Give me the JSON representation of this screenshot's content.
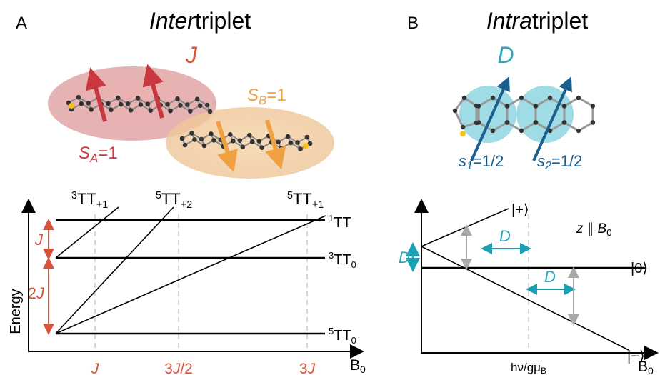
{
  "panel_a": {
    "letter": "A",
    "title": {
      "italic": "Inter",
      "rest": "triplet"
    },
    "coupling": "J",
    "spin_b": {
      "symbol": "S",
      "sub": "B",
      "value": "=1"
    },
    "spin_a": {
      "symbol": "S",
      "sub": "A",
      "value": "=1"
    },
    "diagram": {
      "y_label": "Energy",
      "x_label": {
        "main": "B",
        "sub": "0"
      },
      "top_labels": [
        {
          "sup": "3",
          "main": "TT",
          "sub": "+1"
        },
        {
          "sup": "5",
          "main": "TT",
          "sub": "+2"
        },
        {
          "sup": "5",
          "main": "TT",
          "sub": "+1"
        }
      ],
      "right_labels": [
        {
          "sup": "1",
          "main": "TT"
        },
        {
          "sup": "3",
          "main": "TT",
          "sub": "0"
        },
        {
          "sup": "5",
          "main": "TT",
          "sub": "0"
        }
      ],
      "gaps": [
        {
          "var": "J"
        },
        {
          "pre": "2",
          "var": "J"
        }
      ],
      "x_ticks": [
        {
          "var": "J"
        },
        {
          "pre": "3",
          "var": "J",
          "post": "/2"
        },
        {
          "pre": "3",
          "var": "J"
        }
      ]
    }
  },
  "panel_b": {
    "letter": "B",
    "title": {
      "italic": "Intra",
      "rest": "triplet"
    },
    "coupling": "D",
    "spins": [
      {
        "symbol": "s",
        "sub": "1",
        "value": "=1/2"
      },
      {
        "symbol": "s",
        "sub": "2",
        "value": "=1/2"
      }
    ],
    "diagram": {
      "states": [
        "|+⟩",
        "|0⟩",
        "|−⟩"
      ],
      "field_note": {
        "main": "z ∥ B",
        "sub": "0"
      },
      "splitting_labels": [
        "D",
        "D",
        "D"
      ],
      "x_tick": {
        "main": "hν/gμ",
        "sub": "B"
      },
      "x_label": {
        "main": "B",
        "sub": "0"
      }
    }
  }
}
